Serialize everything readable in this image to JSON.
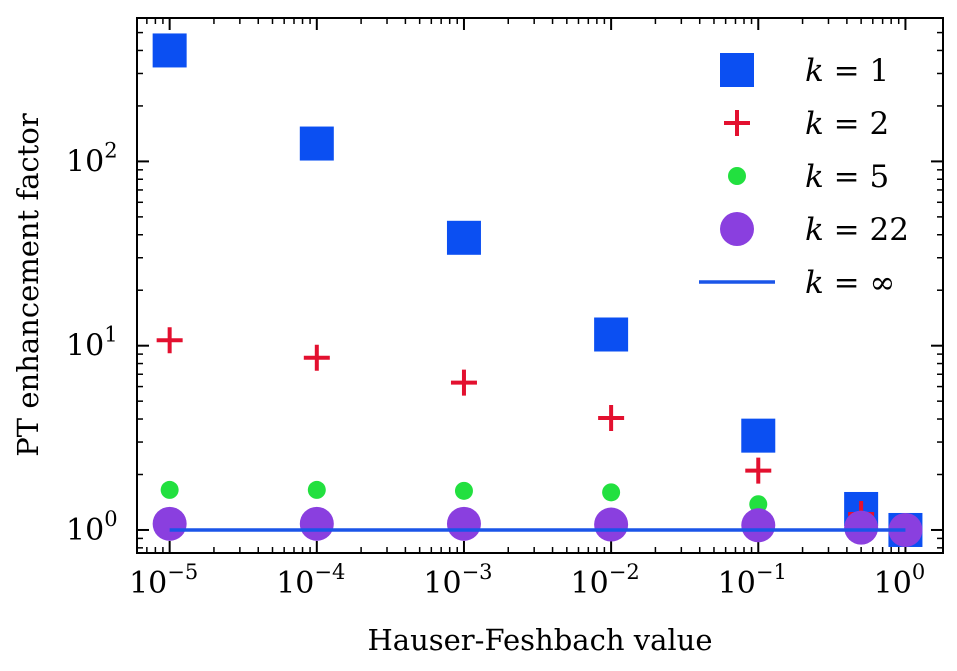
{
  "chart_data": {
    "type": "scatter",
    "xscale": "log",
    "yscale": "log",
    "xlabel": "Hauser-Feshbach value",
    "ylabel": "PT enhancement factor",
    "xlim": [
      6e-06,
      1.8
    ],
    "ylim": [
      0.75,
      600
    ],
    "x_ticks": [
      {
        "value": 1e-05,
        "base": "10",
        "exp": "−5"
      },
      {
        "value": 0.0001,
        "base": "10",
        "exp": "−4"
      },
      {
        "value": 0.001,
        "base": "10",
        "exp": "−3"
      },
      {
        "value": 0.01,
        "base": "10",
        "exp": "−2"
      },
      {
        "value": 0.1,
        "base": "10",
        "exp": "−1"
      },
      {
        "value": 1,
        "base": "10",
        "exp": "0"
      }
    ],
    "y_ticks": [
      {
        "value": 1,
        "base": "10",
        "exp": "0"
      },
      {
        "value": 10,
        "base": "10",
        "exp": "1"
      },
      {
        "value": 100,
        "base": "10",
        "exp": "2"
      }
    ],
    "legend_position": "top-right",
    "series": [
      {
        "name": "k = 1",
        "label_k": "k",
        "label_rest": " = 1",
        "marker": "square",
        "color": "#0b4ff2",
        "x": [
          1e-05,
          0.0001,
          0.001,
          0.01,
          0.1,
          0.5,
          1
        ],
        "y": [
          400,
          125,
          38.5,
          11.5,
          3.25,
          1.3,
          1.0
        ]
      },
      {
        "name": "k = 2",
        "label_k": "k",
        "label_rest": " = 2",
        "marker": "plus",
        "color": "#e3102f",
        "x": [
          1e-05,
          0.0001,
          0.001,
          0.01,
          0.1,
          0.5,
          1
        ],
        "y": [
          10.7,
          8.6,
          6.3,
          4.05,
          2.1,
          1.22,
          1.0
        ]
      },
      {
        "name": "k = 5",
        "label_k": "k",
        "label_rest": " = 5",
        "marker": "small-circle",
        "color": "#22e03f",
        "x": [
          1e-05,
          0.0001,
          0.001,
          0.01,
          0.1,
          0.5,
          1
        ],
        "y": [
          1.65,
          1.65,
          1.63,
          1.6,
          1.38,
          1.1,
          1.0
        ]
      },
      {
        "name": "k = 22",
        "label_k": "k",
        "label_rest": " = 22",
        "marker": "large-circle",
        "color": "#8a3fdf",
        "x": [
          1e-05,
          0.0001,
          0.001,
          0.01,
          0.1,
          0.5,
          1
        ],
        "y": [
          1.08,
          1.08,
          1.08,
          1.07,
          1.06,
          1.03,
          1.0
        ]
      },
      {
        "name": "k = ∞",
        "label_k": "k",
        "label_rest": " = ∞",
        "marker": "line",
        "color": "#1a55e8",
        "x": [
          1e-05,
          1
        ],
        "y": [
          1.0,
          1.0
        ]
      }
    ]
  }
}
